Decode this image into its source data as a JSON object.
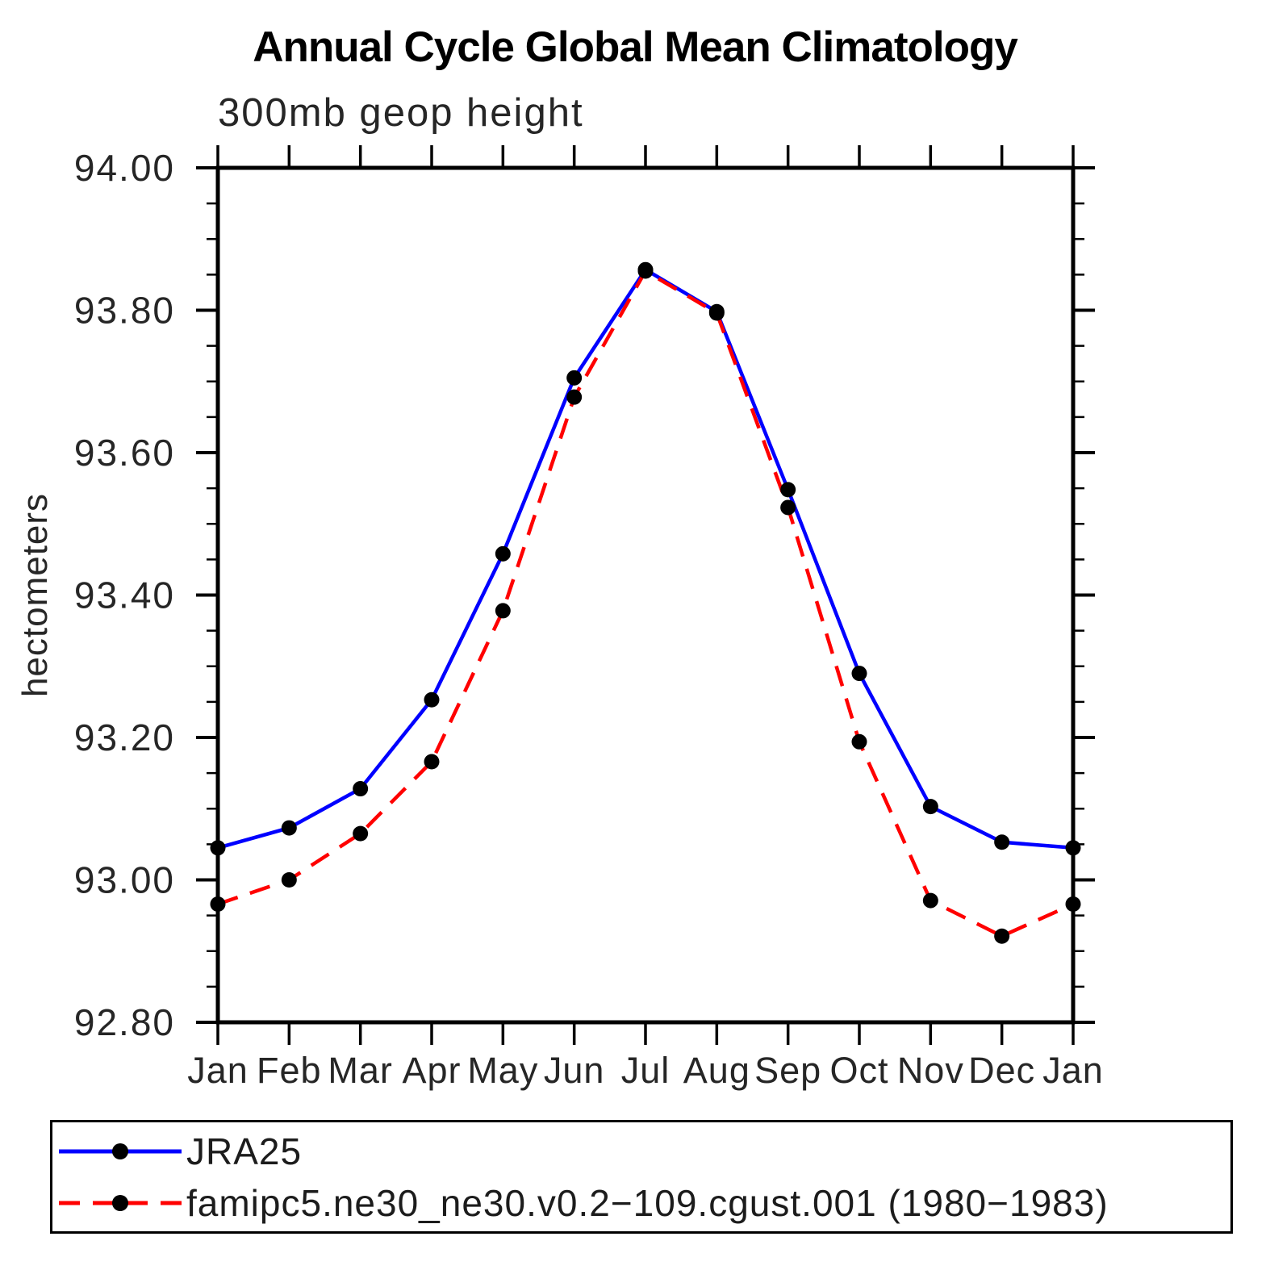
{
  "title": "Annual Cycle Global Mean Climatology",
  "subtitle": "300mb geop height",
  "chart_data": {
    "type": "line",
    "title": "Annual Cycle Global Mean Climatology",
    "subtitle": "300mb geop height",
    "xlabel": "",
    "ylabel": "hectometers",
    "categories": [
      "Jan",
      "Feb",
      "Mar",
      "Apr",
      "May",
      "Jun",
      "Jul",
      "Aug",
      "Sep",
      "Oct",
      "Nov",
      "Dec",
      "Jan"
    ],
    "series": [
      {
        "name": "JRA25",
        "color": "#0000ff",
        "line_style": "solid",
        "marker": "filled-circle",
        "values": [
          93.045,
          93.073,
          93.128,
          93.253,
          93.458,
          93.705,
          93.857,
          93.798,
          93.548,
          93.29,
          93.103,
          93.053,
          93.045
        ]
      },
      {
        "name": "famipc5.ne30_ne30.v0.2−109.cgust.001 (1980−1983)",
        "color": "#ff0000",
        "line_style": "dashed",
        "marker": "filled-circle",
        "values": [
          92.966,
          93.0,
          93.065,
          93.166,
          93.378,
          93.678,
          93.855,
          93.796,
          93.523,
          93.194,
          92.971,
          92.921,
          92.966
        ]
      }
    ],
    "marker_color": "#000000",
    "ylim": [
      92.8,
      94.0
    ],
    "ytick_major": 0.2,
    "ytick_minor": 0.05,
    "ytick_labels": [
      "94.00",
      "93.80",
      "93.60",
      "93.40",
      "93.20",
      "93.00",
      "92.80"
    ],
    "grid": false,
    "legend_position": "bottom-left"
  }
}
